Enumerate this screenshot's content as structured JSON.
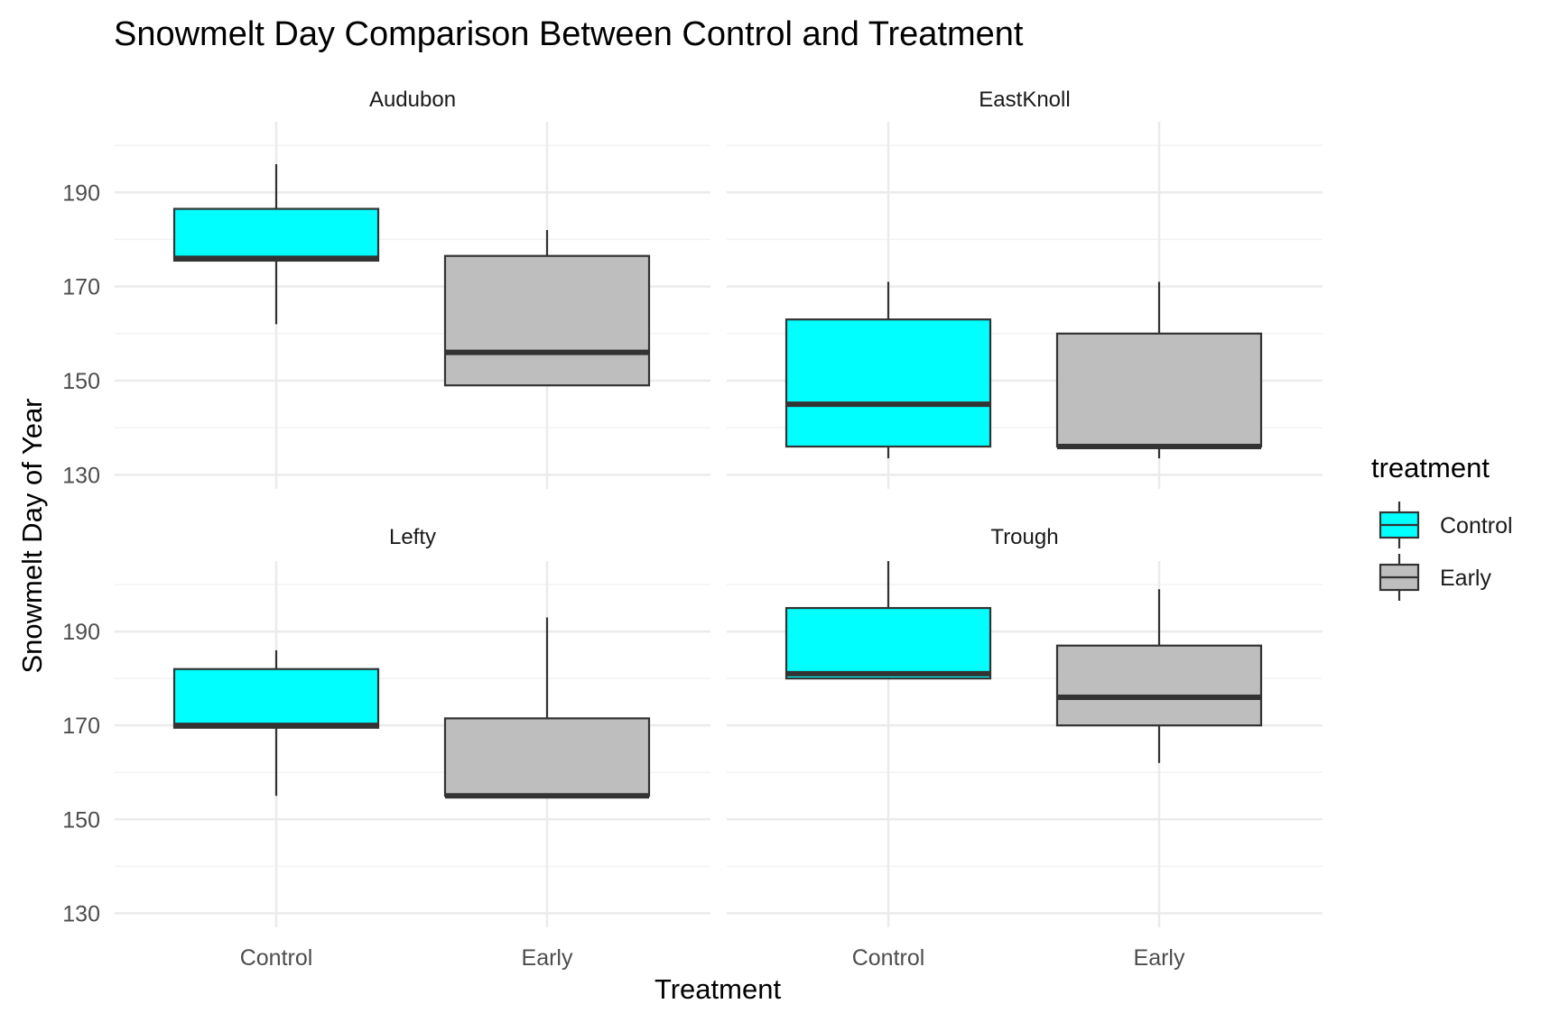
{
  "chart_data": {
    "type": "boxplot",
    "title": "Snowmelt Day Comparison Between Control and Treatment",
    "xlabel": "Treatment",
    "ylabel": "Snowmelt Day of Year",
    "categories": [
      "Control",
      "Early"
    ],
    "ylim": [
      127,
      205
    ],
    "y_ticks": [
      130,
      150,
      170,
      190
    ],
    "y_tick_labels": [
      "130",
      "150",
      "170",
      "190"
    ],
    "grid": true,
    "legend": {
      "title": "treatment",
      "position": "right",
      "entries": [
        {
          "label": "Control",
          "color": "#00ffff"
        },
        {
          "label": "Early",
          "color": "#bebebe"
        }
      ]
    },
    "facets": [
      {
        "name": "Audubon",
        "boxes": [
          {
            "category": "Control",
            "min": 162,
            "q1": 175.5,
            "median": 176,
            "q3": 186.5,
            "max": 196
          },
          {
            "category": "Early",
            "min": 149,
            "q1": 149,
            "median": 156,
            "q3": 176.5,
            "max": 182
          }
        ]
      },
      {
        "name": "EastKnoll",
        "boxes": [
          {
            "category": "Control",
            "min": 133.5,
            "q1": 136,
            "median": 145,
            "q3": 163,
            "max": 171
          },
          {
            "category": "Early",
            "min": 133.5,
            "q1": 136,
            "median": 136,
            "q3": 160,
            "max": 171
          }
        ]
      },
      {
        "name": "Lefty",
        "boxes": [
          {
            "category": "Control",
            "min": 155,
            "q1": 169.5,
            "median": 170,
            "q3": 182,
            "max": 186
          },
          {
            "category": "Early",
            "min": 155,
            "q1": 155,
            "median": 155,
            "q3": 171.5,
            "max": 193
          }
        ]
      },
      {
        "name": "Trough",
        "boxes": [
          {
            "category": "Control",
            "min": 180,
            "q1": 180,
            "median": 181,
            "q3": 195,
            "max": 205
          },
          {
            "category": "Early",
            "min": 162,
            "q1": 170,
            "median": 176,
            "q3": 187,
            "max": 199
          }
        ]
      }
    ]
  }
}
